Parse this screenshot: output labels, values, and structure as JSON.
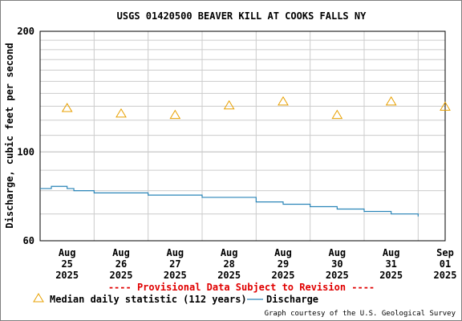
{
  "chart_data": {
    "type": "line",
    "title": "USGS 01420500 BEAVER KILL AT COOKS FALLS NY",
    "ylabel": "Discharge, cubic feet per second",
    "xlabel": "",
    "y_scale": "log",
    "ylim": [
      60,
      200
    ],
    "y_ticks": [
      {
        "value": 60,
        "label": "60"
      },
      {
        "value": 100,
        "label": "100"
      },
      {
        "value": 200,
        "label": "200"
      }
    ],
    "x_range": [
      "2025-08-25T00:00",
      "2025-09-01T12:00"
    ],
    "x_ticks": [
      {
        "date": "2025-08-25T12:00",
        "label": [
          "Aug",
          "25",
          "2025"
        ]
      },
      {
        "date": "2025-08-26T12:00",
        "label": [
          "Aug",
          "26",
          "2025"
        ]
      },
      {
        "date": "2025-08-27T12:00",
        "label": [
          "Aug",
          "27",
          "2025"
        ]
      },
      {
        "date": "2025-08-28T12:00",
        "label": [
          "Aug",
          "28",
          "2025"
        ]
      },
      {
        "date": "2025-08-29T12:00",
        "label": [
          "Aug",
          "29",
          "2025"
        ]
      },
      {
        "date": "2025-08-30T12:00",
        "label": [
          "Aug",
          "30",
          "2025"
        ]
      },
      {
        "date": "2025-08-31T12:00",
        "label": [
          "Aug",
          "31",
          "2025"
        ]
      },
      {
        "date": "2025-09-01T12:00",
        "label": [
          "Sep",
          "01",
          "2025"
        ]
      }
    ],
    "grid": true,
    "series": [
      {
        "name": "Median daily statistic (112 years)",
        "kind": "markers",
        "marker": "triangle",
        "color": "#e8a000",
        "points": [
          {
            "x": "2025-08-25T12:00",
            "y": 129
          },
          {
            "x": "2025-08-26T12:00",
            "y": 125
          },
          {
            "x": "2025-08-27T12:00",
            "y": 124
          },
          {
            "x": "2025-08-28T12:00",
            "y": 131
          },
          {
            "x": "2025-08-29T12:00",
            "y": 134
          },
          {
            "x": "2025-08-30T12:00",
            "y": 124
          },
          {
            "x": "2025-08-31T12:00",
            "y": 134
          },
          {
            "x": "2025-09-01T12:00",
            "y": 130
          }
        ]
      },
      {
        "name": "Discharge",
        "kind": "line",
        "color": "#2a85b8",
        "points": [
          {
            "x": "2025-08-25T00:00",
            "y": 81
          },
          {
            "x": "2025-08-25T03:00",
            "y": 81
          },
          {
            "x": "2025-08-25T05:00",
            "y": 82
          },
          {
            "x": "2025-08-25T09:00",
            "y": 82
          },
          {
            "x": "2025-08-25T12:00",
            "y": 81
          },
          {
            "x": "2025-08-25T15:00",
            "y": 80
          },
          {
            "x": "2025-08-25T18:00",
            "y": 80
          },
          {
            "x": "2025-08-26T00:00",
            "y": 79
          },
          {
            "x": "2025-08-26T12:00",
            "y": 79
          },
          {
            "x": "2025-08-27T00:00",
            "y": 78
          },
          {
            "x": "2025-08-27T12:00",
            "y": 78
          },
          {
            "x": "2025-08-28T00:00",
            "y": 77
          },
          {
            "x": "2025-08-28T12:00",
            "y": 77
          },
          {
            "x": "2025-08-29T00:00",
            "y": 75
          },
          {
            "x": "2025-08-29T12:00",
            "y": 74
          },
          {
            "x": "2025-08-30T00:00",
            "y": 73
          },
          {
            "x": "2025-08-30T12:00",
            "y": 72
          },
          {
            "x": "2025-08-31T00:00",
            "y": 71
          },
          {
            "x": "2025-08-31T12:00",
            "y": 70
          },
          {
            "x": "2025-09-01T00:00",
            "y": 69
          }
        ]
      }
    ],
    "annotations": [
      {
        "text": "---- Provisional Data Subject to Revision ----",
        "color": "#e00000"
      },
      {
        "text": "Graph courtesy of the U.S. Geological Survey",
        "color": "#000000"
      }
    ],
    "legend_position": "bottom"
  }
}
